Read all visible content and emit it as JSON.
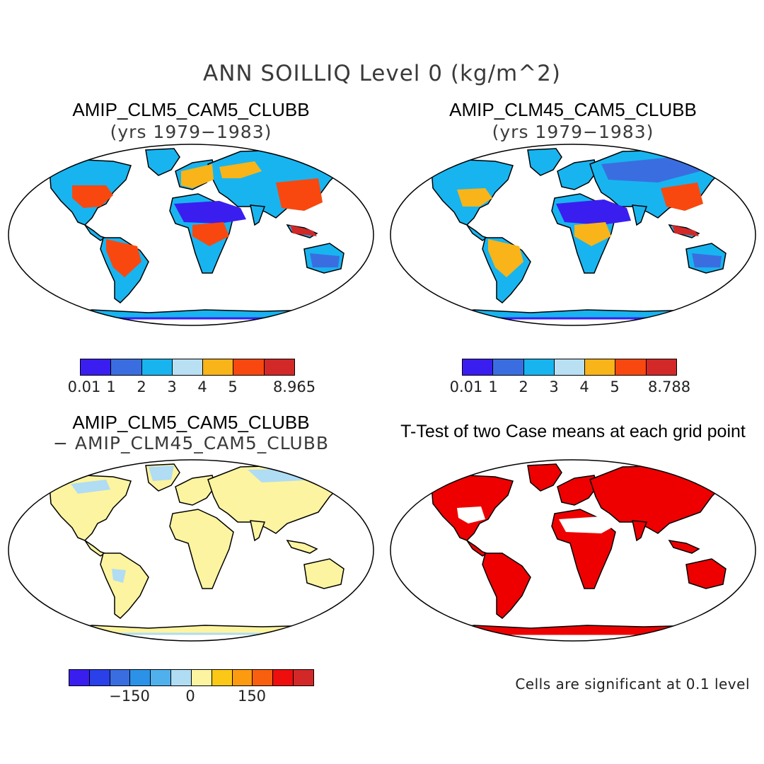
{
  "figure": {
    "title": "ANN SOILLIQ Level 0 (kg/m^2)"
  },
  "panels": [
    {
      "id": "clm5",
      "title": "AMIP_CLM5_CAM5_CLUBB",
      "subtitle": "(yrs 1979−1983)",
      "colorbar": {
        "colors": [
          "#3a1ef0",
          "#3a6ee0",
          "#18b4f0",
          "#b8e0f2",
          "#f8b418",
          "#f84810",
          "#d22828"
        ],
        "ticks": [
          "0.01",
          "1",
          "2",
          "3",
          "4",
          "5",
          "8.965"
        ]
      }
    },
    {
      "id": "clm45",
      "title": "AMIP_CLM45_CAM5_CLUBB",
      "subtitle": "(yrs 1979−1983)",
      "colorbar": {
        "colors": [
          "#3a1ef0",
          "#3a6ee0",
          "#18b4f0",
          "#b8e0f2",
          "#f8b418",
          "#f84810",
          "#d22828"
        ],
        "ticks": [
          "0.01",
          "1",
          "2",
          "3",
          "4",
          "5",
          "8.788"
        ]
      }
    },
    {
      "id": "diff",
      "title": "AMIP_CLM5_CAM5_CLUBB",
      "subtitle": "− AMIP_CLM45_CAM5_CLUBB",
      "colorbar": {
        "colors": [
          "#3a1ef0",
          "#2a40e8",
          "#3a6ee0",
          "#2c92e8",
          "#50b0ec",
          "#b0dcf4",
          "#fcf4a0",
          "#fcc818",
          "#fc9a10",
          "#f86010",
          "#ee0e0e",
          "#d22828"
        ],
        "ticks": [
          "−150",
          "0",
          "150"
        ]
      }
    },
    {
      "id": "ttest",
      "title": "T-Test of two Case means at each grid point",
      "note": "Cells are significant at 0.1 level",
      "colors": {
        "significant": "#ee0000"
      }
    }
  ]
}
